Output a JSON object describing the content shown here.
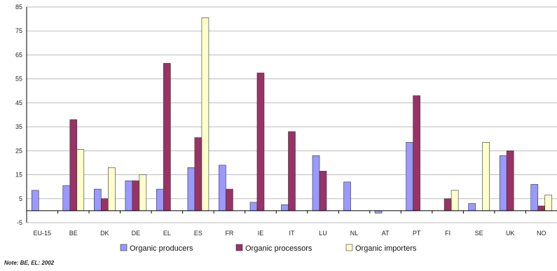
{
  "chart_data": {
    "type": "bar",
    "categories": [
      "EU-15",
      "BE",
      "DK",
      "DE",
      "EL",
      "ES",
      "FR",
      "IE",
      "IT",
      "LU",
      "NL",
      "AT",
      "PT",
      "FI",
      "SE",
      "UK",
      "NO"
    ],
    "series": [
      {
        "name": "Organic producers",
        "color": "#9999ff",
        "values": [
          8.5,
          10.5,
          9,
          12.5,
          9,
          18,
          19,
          3.5,
          2.5,
          23,
          12,
          -1,
          28.5,
          null,
          3,
          23,
          11
        ]
      },
      {
        "name": "Organic processors",
        "color": "#993366",
        "values": [
          null,
          38,
          5,
          12.5,
          61.5,
          30.5,
          9,
          57.5,
          33,
          16.5,
          null,
          null,
          48,
          5,
          null,
          25,
          2
        ]
      },
      {
        "name": "Organic importers",
        "color": "#ffffcc",
        "values": [
          null,
          25.5,
          18,
          15,
          null,
          80.5,
          null,
          null,
          null,
          null,
          null,
          null,
          null,
          8.5,
          28.5,
          null,
          6.5
        ]
      }
    ],
    "yticks": [
      -5,
      5,
      15,
      25,
      35,
      45,
      55,
      65,
      75,
      85
    ],
    "ylim": [
      -5,
      85
    ],
    "grid": "horizontal",
    "legend": "bottom"
  },
  "note": "Note: BE, EL: 2002"
}
